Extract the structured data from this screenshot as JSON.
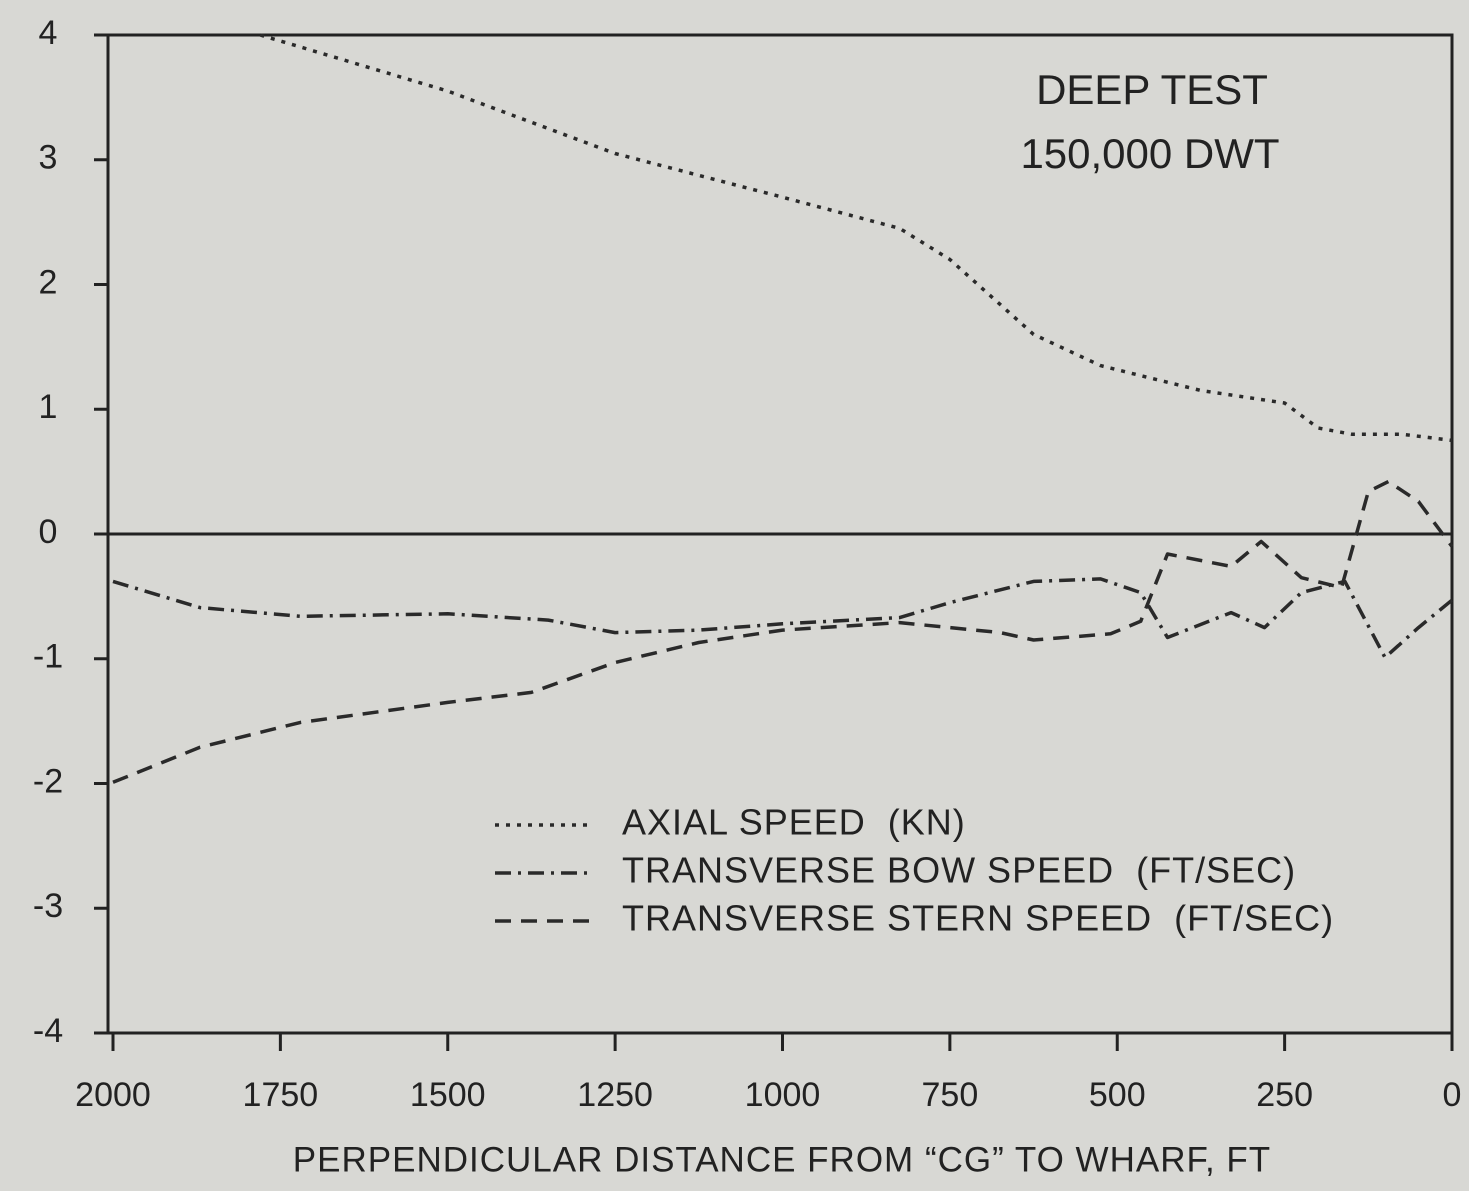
{
  "chart_data": {
    "type": "line",
    "annotations": [
      "DEEP TEST",
      "150,000 DWT"
    ],
    "xlabel": "PERPENDICULAR DISTANCE FROM “CG” TO WHARF, FT",
    "xlim": [
      2000,
      0
    ],
    "xticks": [
      2000,
      1750,
      1500,
      1250,
      1000,
      750,
      500,
      250,
      0
    ],
    "ylim": [
      -4,
      4
    ],
    "yticks": [
      4,
      3,
      2,
      1,
      0,
      -1,
      -2,
      -3,
      -4
    ],
    "grid": false,
    "legend": "bottom-right",
    "series": [
      {
        "name": "AXIAL SPEED  (KN)",
        "color": "#2a2a2a",
        "style": "dotted",
        "x": [
          1780,
          1500,
          1250,
          1000,
          825,
          750,
          625,
          525,
          450,
          375,
          250,
          200,
          150,
          75,
          0
        ],
        "values": [
          4.0,
          3.55,
          3.05,
          2.7,
          2.45,
          2.2,
          1.6,
          1.35,
          1.25,
          1.15,
          1.05,
          0.85,
          0.8,
          0.8,
          0.75
        ]
      },
      {
        "name": "TRANSVERSE BOW SPEED  (FT/SEC)",
        "color": "#2a2a2a",
        "style": "dashdot",
        "x": [
          2000,
          1870,
          1720,
          1500,
          1350,
          1250,
          1125,
          1000,
          825,
          750,
          625,
          525,
          465,
          425,
          330,
          280,
          225,
          160,
          100,
          50,
          0
        ],
        "values": [
          -0.38,
          -0.59,
          -0.66,
          -0.64,
          -0.69,
          -0.79,
          -0.77,
          -0.72,
          -0.67,
          -0.55,
          -0.38,
          -0.36,
          -0.47,
          -0.83,
          -0.63,
          -0.75,
          -0.47,
          -0.38,
          -0.99,
          -0.75,
          -0.53
        ]
      },
      {
        "name": "TRANSVERSE STERN SPEED  (FT/SEC)",
        "color": "#2a2a2a",
        "style": "dashed",
        "x": [
          2000,
          1870,
          1720,
          1500,
          1375,
          1250,
          1125,
          1000,
          825,
          675,
          625,
          510,
          465,
          425,
          330,
          285,
          225,
          165,
          125,
          95,
          50,
          0
        ],
        "values": [
          -1.99,
          -1.71,
          -1.51,
          -1.35,
          -1.27,
          -1.03,
          -0.87,
          -0.77,
          -0.71,
          -0.79,
          -0.85,
          -0.8,
          -0.7,
          -0.16,
          -0.26,
          -0.06,
          -0.35,
          -0.43,
          0.34,
          0.42,
          0.26,
          -0.1
        ]
      }
    ]
  }
}
